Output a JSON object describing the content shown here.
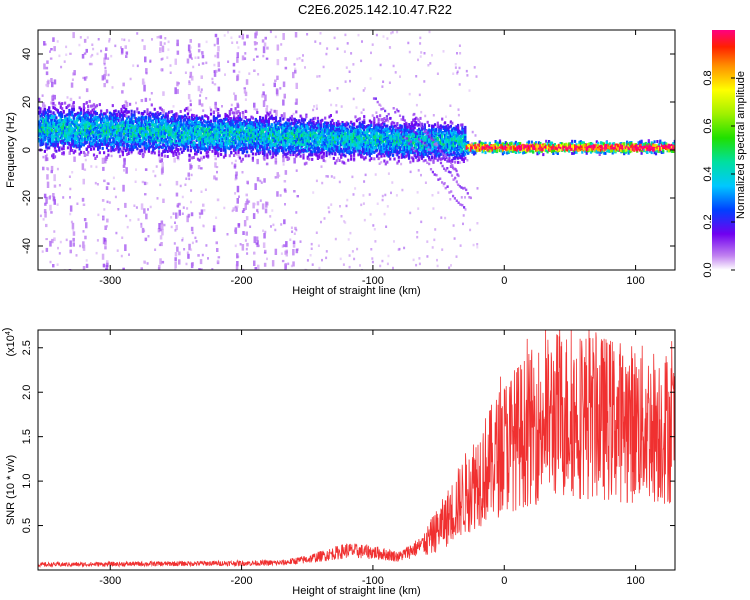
{
  "title": "C2E6.2025.142.10.47.R22",
  "chart_data": [
    {
      "type": "heatmap",
      "xlabel": "Height of straight line (km)",
      "ylabel": "Frequency (Hz)",
      "xlim": [
        -355,
        130
      ],
      "ylim": [
        -50,
        50
      ],
      "xticks": [
        -300,
        -200,
        -100,
        0,
        100
      ],
      "yticks": [
        -40,
        -20,
        0,
        20,
        40
      ],
      "colorbar": {
        "label": "Normalized spectral amplitude",
        "range": [
          0,
          1
        ],
        "ticks": [
          0.0,
          0.2,
          0.4,
          0.6,
          0.8
        ]
      }
    },
    {
      "type": "line",
      "xlabel": "Height of straight line (km)",
      "ylabel": "SNR (10 * v/v)",
      "scale_label": "(x10",
      "scale_exp": "4",
      "xlim": [
        -355,
        130
      ],
      "ylim": [
        0,
        27000
      ],
      "xticks": [
        -300,
        -200,
        -100,
        0,
        100
      ],
      "yticks": [
        5000,
        10000,
        15000,
        20000,
        25000
      ],
      "ytick_labels": [
        "0.5",
        "1.0",
        "1.5",
        "2.0",
        "2.5"
      ],
      "color": "#f03030",
      "trend": {
        "x": [
          -355,
          -170,
          -150,
          -120,
          -100,
          -80,
          -60,
          -45,
          -30,
          -20,
          -10,
          0,
          20,
          40,
          60,
          80,
          100,
          130
        ],
        "y": [
          600,
          800,
          1200,
          2200,
          2000,
          1500,
          3000,
          5500,
          8500,
          10500,
          12000,
          14000,
          16000,
          17500,
          17500,
          17000,
          16500,
          16000
        ]
      }
    }
  ]
}
